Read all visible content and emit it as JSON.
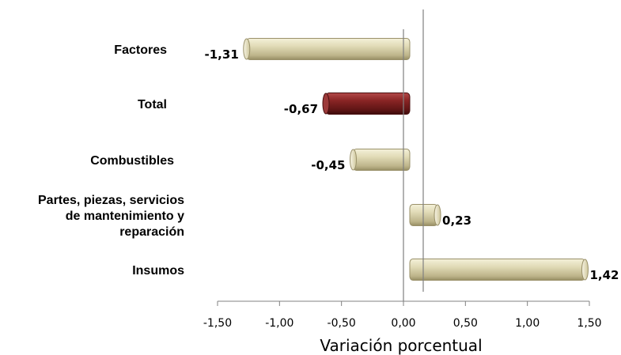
{
  "chart_data": {
    "type": "bar",
    "orientation": "horizontal",
    "title": "",
    "xlabel": "Variación porcentual",
    "ylabel": "",
    "xlim": [
      -1.5,
      1.5
    ],
    "xticks": [
      -1.5,
      -1.0,
      -0.5,
      0.0,
      0.5,
      1.0,
      1.5
    ],
    "xtick_labels": [
      "-1,50",
      "-1,00",
      "-0,50",
      "0,00",
      "0,50",
      "1,00",
      "1,50"
    ],
    "categories": [
      [
        "Factores"
      ],
      [
        "Total"
      ],
      [
        "Combustibles"
      ],
      [
        "Partes, piezas, servicios",
        "de mantenimiento y",
        "reparación"
      ],
      [
        "Insumos"
      ]
    ],
    "values": [
      -1.31,
      -0.67,
      -0.45,
      0.23,
      1.42
    ],
    "value_labels": [
      "-1,31",
      "-0,67",
      "-0,45",
      "0,23",
      "1,42"
    ],
    "bar_colors": [
      "#d9d2a6",
      "#7a1e1e",
      "#d9d2a6",
      "#d9d2a6",
      "#d9d2a6"
    ],
    "grid": false,
    "legend": "none"
  }
}
